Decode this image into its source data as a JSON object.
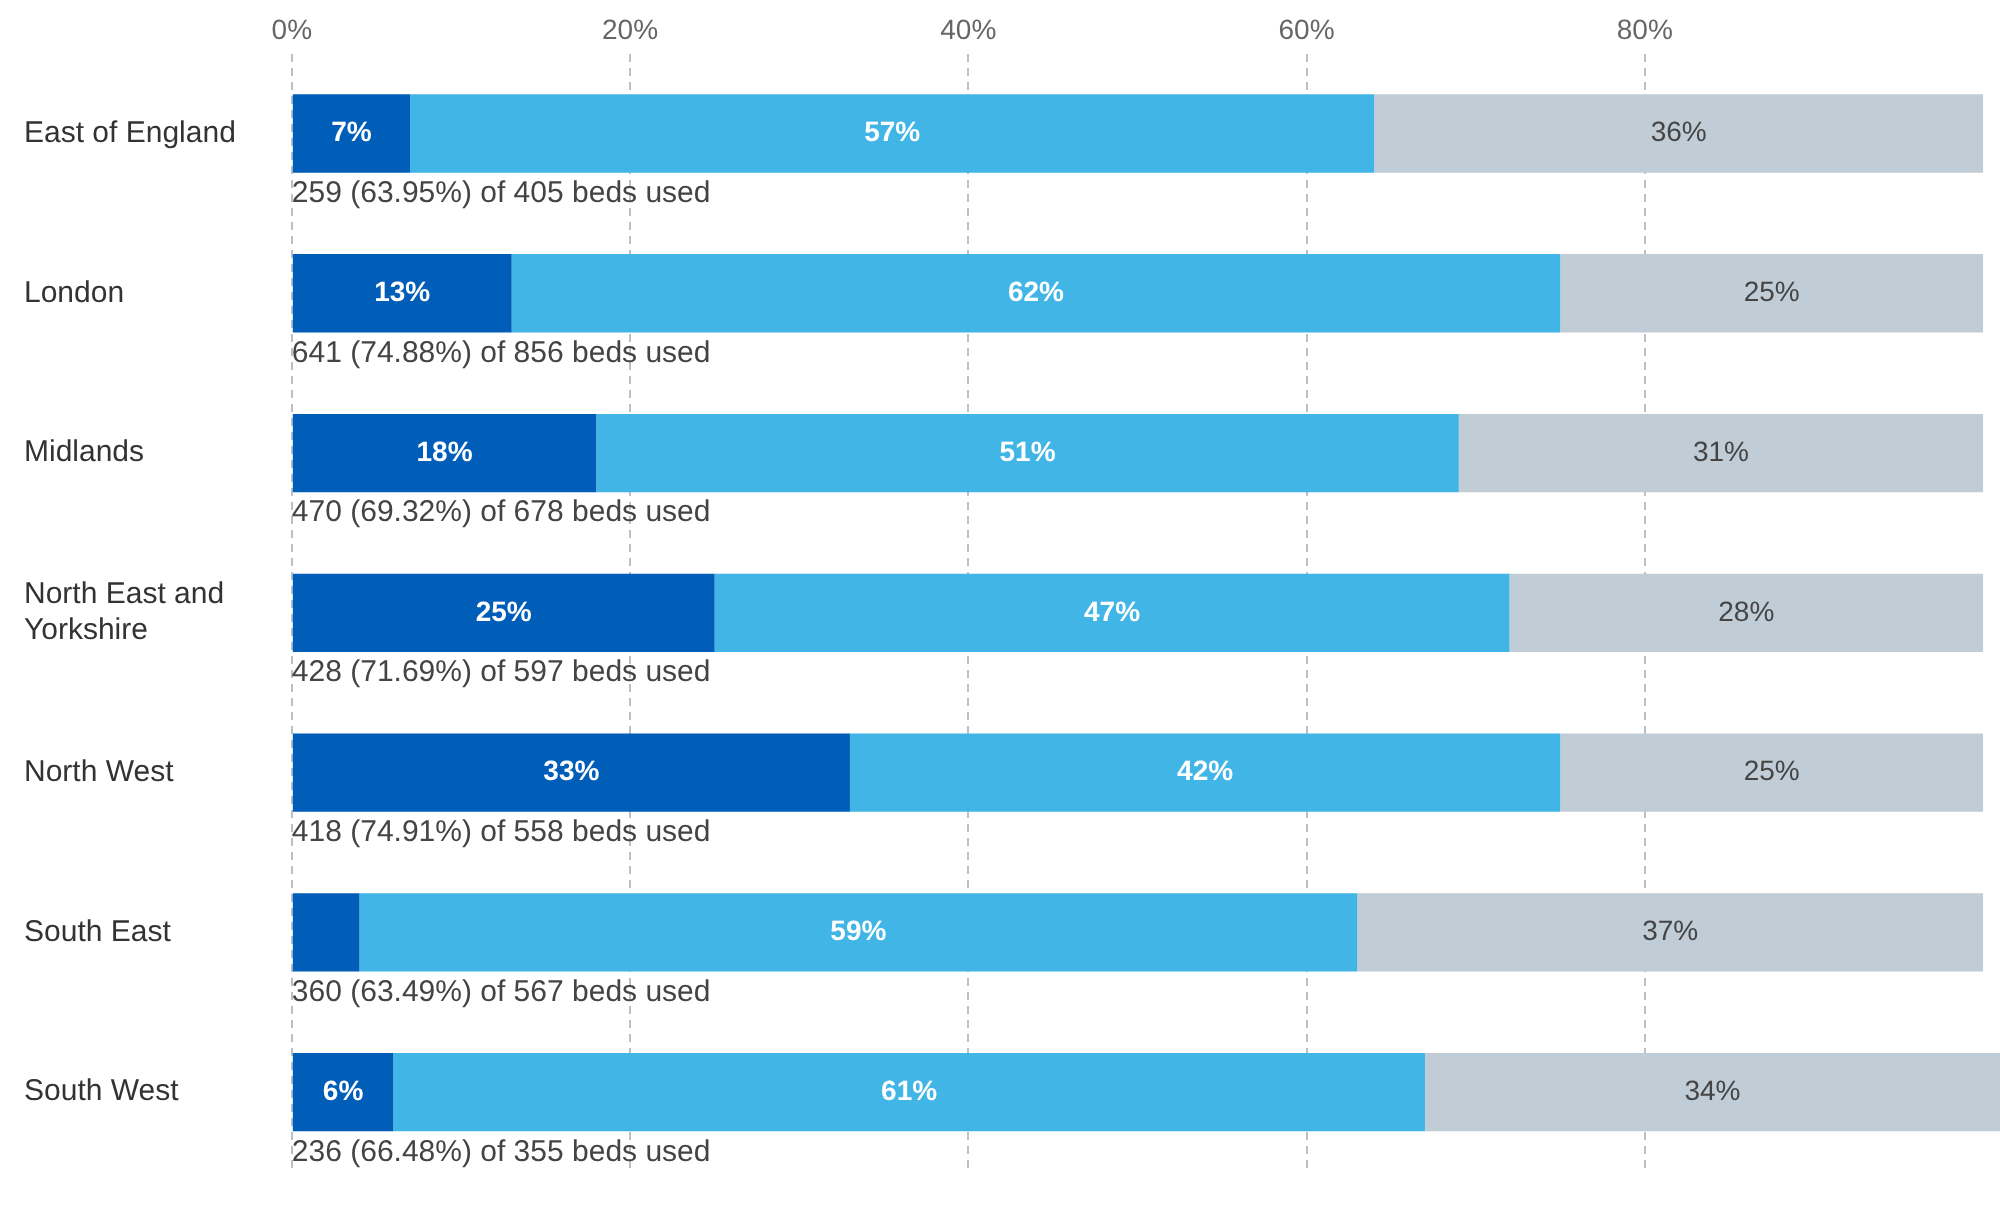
{
  "chart_data": {
    "type": "bar",
    "orientation": "horizontal",
    "stacked": true,
    "categories": [
      "East of England",
      "London",
      "Midlands",
      "North East and Yorkshire",
      "North West",
      "South East",
      "South West"
    ],
    "series": [
      {
        "color": "#005eb8",
        "values": [
          7,
          13,
          18,
          25,
          33,
          4,
          6
        ],
        "value_labels": [
          "7%",
          "13%",
          "18%",
          "25%",
          "33%",
          null,
          "6%"
        ]
      },
      {
        "color": "#41b6e6",
        "values": [
          57,
          62,
          51,
          47,
          42,
          59,
          61
        ],
        "value_labels": [
          "57%",
          "62%",
          "51%",
          "47%",
          "42%",
          "59%",
          "61%"
        ]
      },
      {
        "color": "#c0ccd6",
        "values": [
          36,
          25,
          31,
          28,
          25,
          37,
          34
        ],
        "value_labels": [
          "36%",
          "25%",
          "31%",
          "28%",
          "25%",
          "37%",
          "34%"
        ]
      }
    ],
    "xlim": [
      0,
      101
    ],
    "xticks": [
      {
        "value": 0,
        "label": "0%"
      },
      {
        "value": 20,
        "label": "20%"
      },
      {
        "value": 40,
        "label": "40%"
      },
      {
        "value": 60,
        "label": "60%"
      },
      {
        "value": 80,
        "label": "80%"
      }
    ],
    "grid": "x",
    "legend": false,
    "annotations": [
      "259 (63.95%) of 405 beds used",
      "641 (74.88%) of 856 beds used",
      "470 (69.32%) of 678 beds used",
      "428 (71.69%) of 597 beds used",
      "418 (74.91%) of 558 beds used",
      "360 (63.49%) of 567 beds used",
      "236 (66.48%) of 355 beds used"
    ]
  }
}
